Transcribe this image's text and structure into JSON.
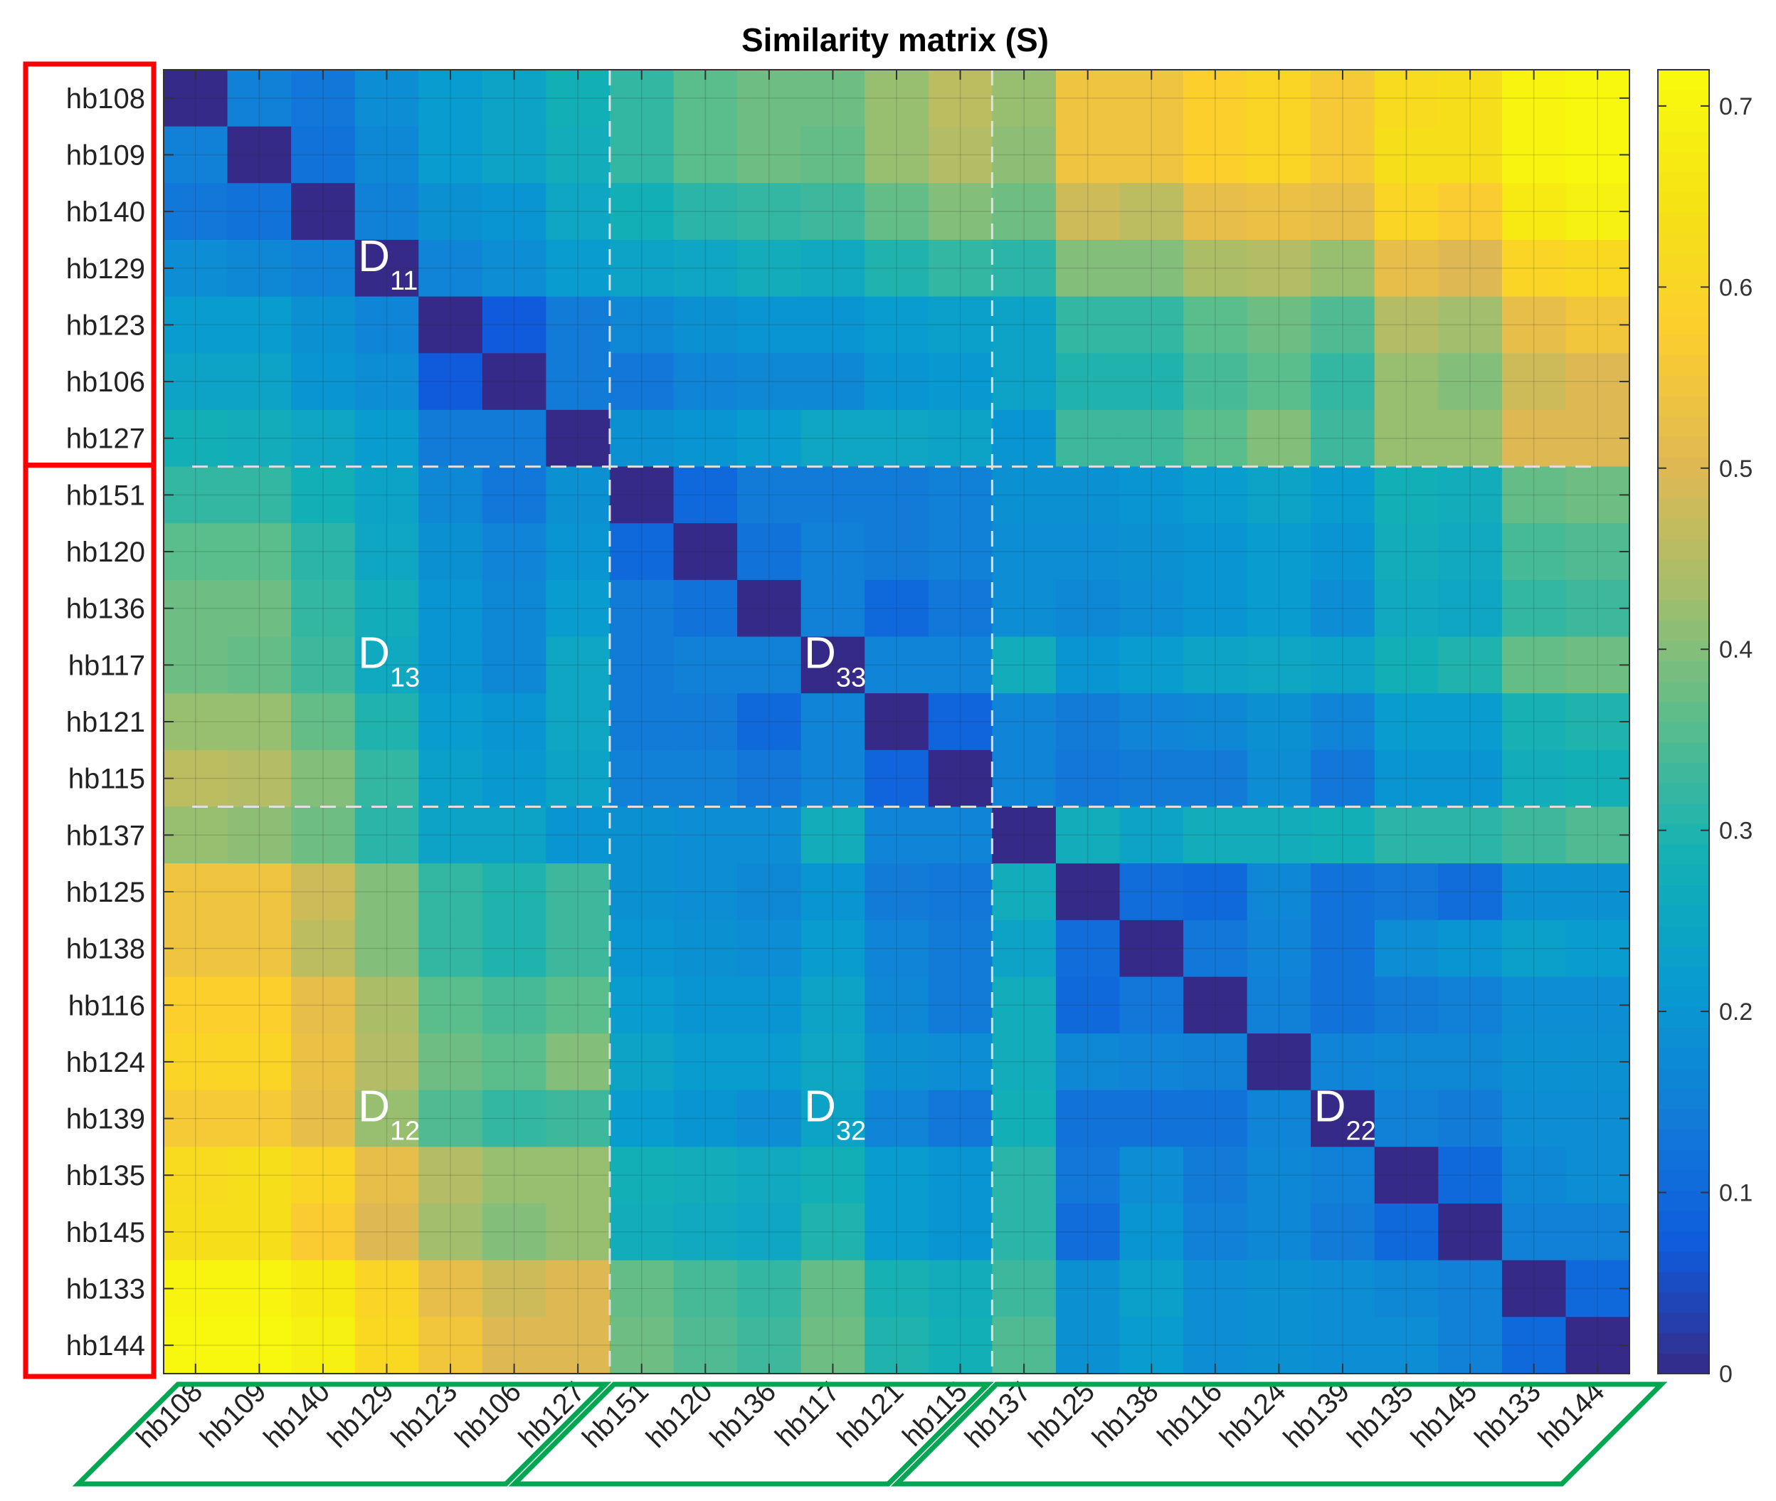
{
  "chart_data": {
    "type": "heatmap",
    "title": "Similarity matrix (S)",
    "labels": [
      "hb108",
      "hb109",
      "hb140",
      "hb129",
      "hb123",
      "hb106",
      "hb127",
      "hb151",
      "hb120",
      "hb136",
      "hb117",
      "hb121",
      "hb115",
      "hb137",
      "hb125",
      "hb138",
      "hb116",
      "hb124",
      "hb139",
      "hb135",
      "hb145",
      "hb133",
      "hb144"
    ],
    "values": [
      [
        0.0,
        0.15,
        0.13,
        0.18,
        0.22,
        0.24,
        0.28,
        0.32,
        0.36,
        0.38,
        0.38,
        0.42,
        0.46,
        0.42,
        0.54,
        0.54,
        0.58,
        0.6,
        0.56,
        0.62,
        0.63,
        0.7,
        0.71
      ],
      [
        0.15,
        0.0,
        0.12,
        0.17,
        0.22,
        0.24,
        0.27,
        0.32,
        0.36,
        0.38,
        0.37,
        0.42,
        0.45,
        0.41,
        0.54,
        0.54,
        0.58,
        0.6,
        0.56,
        0.63,
        0.63,
        0.7,
        0.71
      ],
      [
        0.13,
        0.12,
        0.0,
        0.15,
        0.19,
        0.2,
        0.25,
        0.28,
        0.31,
        0.32,
        0.33,
        0.37,
        0.4,
        0.38,
        0.48,
        0.46,
        0.52,
        0.53,
        0.52,
        0.6,
        0.57,
        0.67,
        0.69
      ],
      [
        0.18,
        0.17,
        0.15,
        0.0,
        0.16,
        0.18,
        0.22,
        0.24,
        0.25,
        0.27,
        0.26,
        0.3,
        0.32,
        0.31,
        0.4,
        0.4,
        0.44,
        0.45,
        0.42,
        0.52,
        0.5,
        0.6,
        0.61
      ],
      [
        0.22,
        0.22,
        0.19,
        0.16,
        0.0,
        0.07,
        0.14,
        0.17,
        0.19,
        0.2,
        0.2,
        0.22,
        0.23,
        0.24,
        0.32,
        0.32,
        0.36,
        0.38,
        0.35,
        0.45,
        0.43,
        0.52,
        0.55
      ],
      [
        0.24,
        0.24,
        0.2,
        0.18,
        0.07,
        0.0,
        0.14,
        0.13,
        0.16,
        0.17,
        0.17,
        0.2,
        0.21,
        0.24,
        0.3,
        0.3,
        0.34,
        0.36,
        0.32,
        0.42,
        0.4,
        0.48,
        0.5
      ],
      [
        0.28,
        0.27,
        0.25,
        0.22,
        0.14,
        0.14,
        0.0,
        0.19,
        0.2,
        0.22,
        0.25,
        0.25,
        0.24,
        0.2,
        0.33,
        0.33,
        0.36,
        0.4,
        0.33,
        0.42,
        0.42,
        0.5,
        0.5
      ],
      [
        0.32,
        0.32,
        0.28,
        0.24,
        0.17,
        0.13,
        0.19,
        0.0,
        0.1,
        0.14,
        0.14,
        0.14,
        0.15,
        0.19,
        0.19,
        0.2,
        0.22,
        0.24,
        0.22,
        0.28,
        0.27,
        0.37,
        0.38
      ],
      [
        0.36,
        0.36,
        0.31,
        0.25,
        0.19,
        0.16,
        0.2,
        0.1,
        0.0,
        0.12,
        0.15,
        0.14,
        0.15,
        0.18,
        0.18,
        0.19,
        0.2,
        0.22,
        0.2,
        0.27,
        0.26,
        0.34,
        0.35
      ],
      [
        0.38,
        0.38,
        0.32,
        0.27,
        0.2,
        0.17,
        0.22,
        0.14,
        0.12,
        0.0,
        0.15,
        0.1,
        0.13,
        0.18,
        0.17,
        0.18,
        0.2,
        0.22,
        0.18,
        0.26,
        0.25,
        0.32,
        0.33
      ],
      [
        0.38,
        0.37,
        0.33,
        0.26,
        0.2,
        0.17,
        0.25,
        0.14,
        0.15,
        0.15,
        0.0,
        0.16,
        0.16,
        0.27,
        0.2,
        0.22,
        0.24,
        0.25,
        0.24,
        0.28,
        0.3,
        0.37,
        0.38
      ],
      [
        0.42,
        0.42,
        0.37,
        0.3,
        0.22,
        0.2,
        0.25,
        0.14,
        0.14,
        0.1,
        0.16,
        0.0,
        0.09,
        0.16,
        0.14,
        0.16,
        0.17,
        0.19,
        0.16,
        0.22,
        0.22,
        0.29,
        0.3
      ],
      [
        0.46,
        0.45,
        0.4,
        0.32,
        0.23,
        0.21,
        0.24,
        0.15,
        0.15,
        0.13,
        0.16,
        0.09,
        0.0,
        0.16,
        0.13,
        0.14,
        0.14,
        0.18,
        0.13,
        0.2,
        0.2,
        0.27,
        0.28
      ],
      [
        0.42,
        0.41,
        0.38,
        0.31,
        0.24,
        0.24,
        0.2,
        0.19,
        0.18,
        0.18,
        0.27,
        0.16,
        0.16,
        0.0,
        0.27,
        0.24,
        0.27,
        0.27,
        0.28,
        0.31,
        0.31,
        0.33,
        0.35
      ],
      [
        0.54,
        0.54,
        0.48,
        0.4,
        0.32,
        0.3,
        0.33,
        0.19,
        0.18,
        0.17,
        0.2,
        0.14,
        0.13,
        0.27,
        0.0,
        0.11,
        0.1,
        0.17,
        0.12,
        0.13,
        0.11,
        0.19,
        0.19
      ],
      [
        0.54,
        0.54,
        0.46,
        0.4,
        0.32,
        0.3,
        0.33,
        0.2,
        0.19,
        0.18,
        0.22,
        0.16,
        0.14,
        0.24,
        0.11,
        0.0,
        0.13,
        0.16,
        0.12,
        0.18,
        0.2,
        0.23,
        0.22
      ],
      [
        0.58,
        0.58,
        0.52,
        0.44,
        0.36,
        0.34,
        0.36,
        0.22,
        0.2,
        0.2,
        0.24,
        0.17,
        0.14,
        0.27,
        0.1,
        0.13,
        0.0,
        0.15,
        0.12,
        0.14,
        0.15,
        0.18,
        0.18
      ],
      [
        0.6,
        0.6,
        0.53,
        0.45,
        0.38,
        0.36,
        0.4,
        0.24,
        0.22,
        0.22,
        0.25,
        0.19,
        0.18,
        0.27,
        0.17,
        0.16,
        0.15,
        0.0,
        0.16,
        0.17,
        0.17,
        0.19,
        0.19
      ],
      [
        0.56,
        0.56,
        0.52,
        0.42,
        0.35,
        0.32,
        0.33,
        0.22,
        0.2,
        0.18,
        0.24,
        0.16,
        0.13,
        0.28,
        0.12,
        0.12,
        0.12,
        0.16,
        0.0,
        0.15,
        0.14,
        0.18,
        0.18
      ],
      [
        0.62,
        0.63,
        0.6,
        0.52,
        0.45,
        0.42,
        0.42,
        0.28,
        0.27,
        0.26,
        0.28,
        0.22,
        0.2,
        0.31,
        0.13,
        0.18,
        0.14,
        0.17,
        0.15,
        0.0,
        0.1,
        0.17,
        0.18
      ],
      [
        0.63,
        0.63,
        0.57,
        0.5,
        0.43,
        0.4,
        0.42,
        0.27,
        0.26,
        0.25,
        0.3,
        0.22,
        0.2,
        0.31,
        0.11,
        0.2,
        0.15,
        0.17,
        0.14,
        0.1,
        0.0,
        0.15,
        0.15
      ],
      [
        0.7,
        0.7,
        0.67,
        0.6,
        0.52,
        0.48,
        0.5,
        0.37,
        0.34,
        0.32,
        0.37,
        0.29,
        0.27,
        0.33,
        0.19,
        0.23,
        0.18,
        0.19,
        0.18,
        0.17,
        0.15,
        0.0,
        0.1
      ],
      [
        0.71,
        0.71,
        0.69,
        0.61,
        0.55,
        0.5,
        0.5,
        0.38,
        0.35,
        0.33,
        0.38,
        0.3,
        0.28,
        0.35,
        0.19,
        0.22,
        0.18,
        0.19,
        0.18,
        0.18,
        0.15,
        0.1,
        0.0
      ]
    ],
    "color_range": [
      0,
      0.72
    ],
    "colormap": "parula",
    "colorbar_ticks": [
      0,
      0.1,
      0.2,
      0.3,
      0.4,
      0.5,
      0.6,
      0.7
    ],
    "colorbar_tick_labels": [
      "0",
      "0.1",
      "0.2",
      "0.3",
      "0.4",
      "0.5",
      "0.6",
      "0.7"
    ],
    "group_breaks": [
      7,
      13
    ],
    "row_groups": [
      [
        0,
        6
      ],
      [
        7,
        22
      ]
    ],
    "col_groups": [
      [
        0,
        6
      ],
      [
        7,
        12
      ],
      [
        13,
        22
      ]
    ],
    "blocks": [
      {
        "main": "D",
        "sub": "11",
        "row": 3,
        "col": 3
      },
      {
        "main": "D",
        "sub": "13",
        "row": 10,
        "col": 3
      },
      {
        "main": "D",
        "sub": "33",
        "row": 10,
        "col": 10
      },
      {
        "main": "D",
        "sub": "12",
        "row": 18,
        "col": 3
      },
      {
        "main": "D",
        "sub": "32",
        "row": 18,
        "col": 10
      },
      {
        "main": "D",
        "sub": "22",
        "row": 18,
        "col": 18
      }
    ],
    "colors": {
      "row_group_box": "#ff0000",
      "col_group_box": "#00a651",
      "divider": "#e0e0e0"
    }
  }
}
